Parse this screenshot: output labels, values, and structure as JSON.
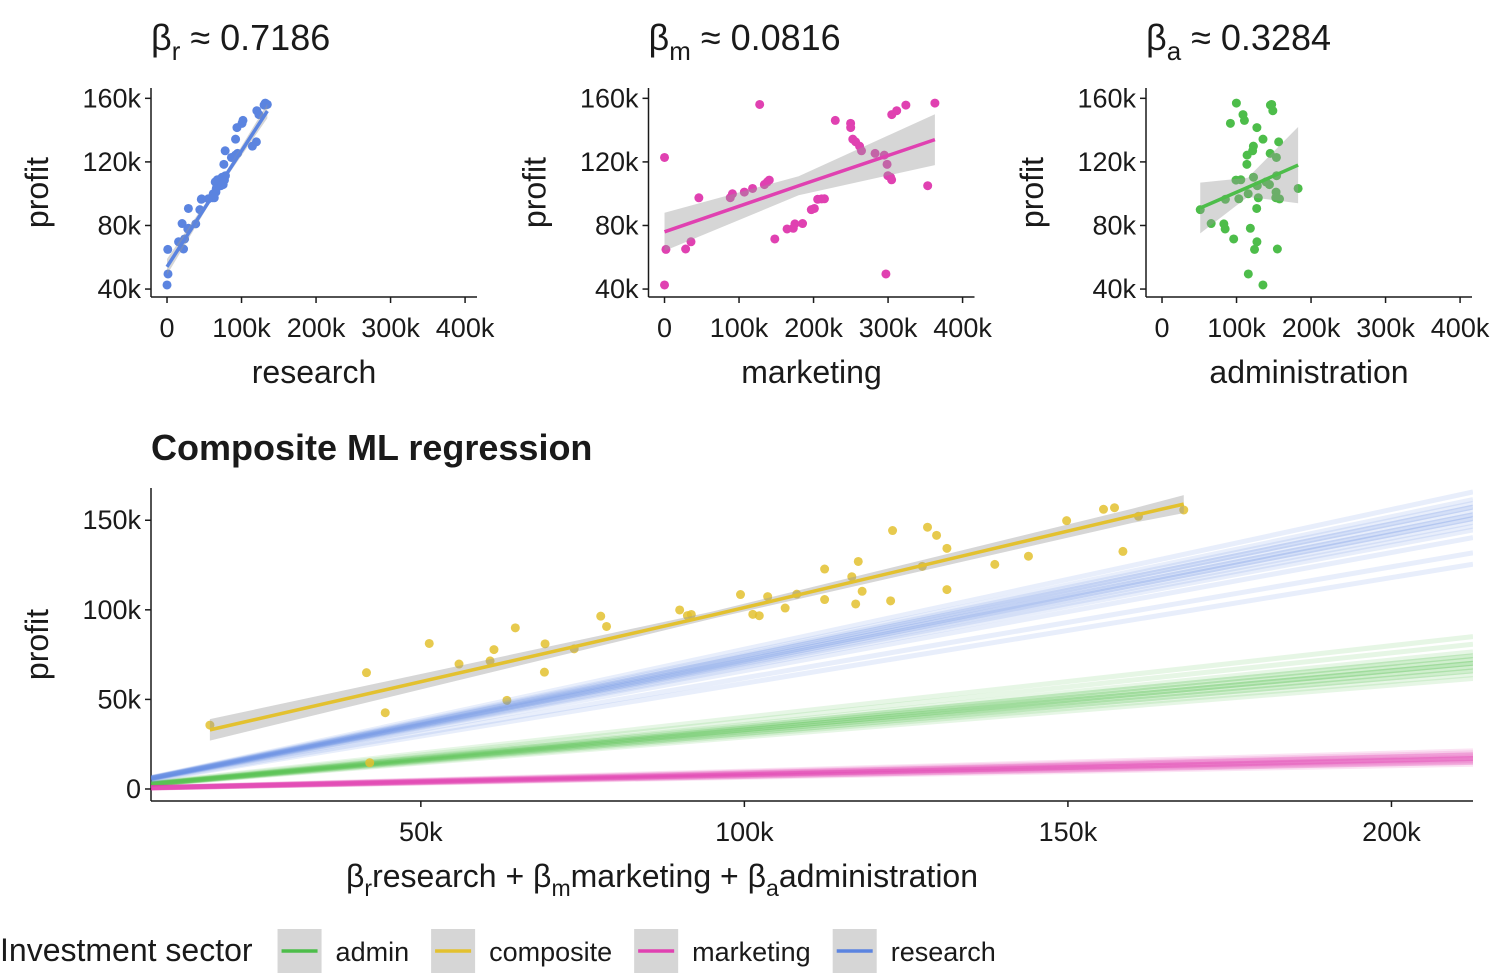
{
  "chart_data": [
    {
      "type": "scatter",
      "title": [
        {
          "text": "β"
        },
        {
          "sub": "r"
        },
        {
          "text": " ≈ 0.7186"
        }
      ],
      "xlabel": "research",
      "ylabel": "profit",
      "xlim": [
        -21500,
        416000
      ],
      "ylim": [
        35000,
        166500
      ],
      "xticks": [
        0,
        {
          "value": 100000,
          "label": "100k"
        },
        {
          "value": 200000,
          "label": "200k"
        },
        {
          "value": 300000,
          "label": "300k"
        },
        {
          "value": 400000,
          "label": "400k"
        }
      ],
      "yticks": [
        {
          "value": 40000,
          "label": "40k"
        },
        {
          "value": 80000,
          "label": "80k"
        },
        {
          "value": 120000,
          "label": "120k"
        },
        {
          "value": 160000,
          "label": "160k"
        }
      ],
      "series": [
        {
          "color": "#5b84e0",
          "x": [
            131877,
            134615,
            130298,
            120543,
            123335,
            101913,
            100672,
            93864,
            91992,
            119943,
            114524,
            78013,
            94657,
            91749,
            86420,
            76254,
            78389,
            73995,
            67533,
            77044,
            64665,
            75329,
            72108,
            66052,
            65605,
            61994,
            61136,
            63409,
            55494,
            46426,
            46014,
            28664,
            44070,
            20230,
            38559,
            28754,
            27893,
            23641,
            15506,
            22178,
            1000,
            1315,
            0
          ],
          "y": [
            156991,
            156123,
            155753,
            152212,
            149760,
            146122,
            144259,
            141586,
            134307,
            132603,
            129917,
            126993,
            125370,
            124267,
            122777,
            118474,
            111313,
            110352,
            108734,
            108552,
            107404,
            105734,
            105008,
            103282,
            101005,
            99938,
            97484,
            97428,
            96779,
            96713,
            96480,
            90708,
            89949,
            81229,
            81006,
            78240,
            77799,
            71498,
            69759,
            65200,
            64926,
            49491,
            42560
          ]
        }
      ],
      "fit": {
        "x": [
          0,
          67000,
          134615
        ],
        "y": [
          54000,
          103000,
          152000
        ],
        "lower": [
          49000,
          101500,
          147500
        ],
        "upper": [
          59000,
          104500,
          156500
        ]
      }
    },
    {
      "type": "scatter",
      "title": [
        {
          "text": "β"
        },
        {
          "sub": "m"
        },
        {
          "text": " ≈ 0.0816"
        }
      ],
      "xlabel": "marketing",
      "ylabel": "profit",
      "xlim": [
        -21500,
        416000
      ],
      "ylim": [
        35000,
        166500
      ],
      "xticks": [
        0,
        {
          "value": 100000,
          "label": "100k"
        },
        {
          "value": 200000,
          "label": "200k"
        },
        {
          "value": 300000,
          "label": "300k"
        },
        {
          "value": 400000,
          "label": "400k"
        }
      ],
      "yticks": [
        {
          "value": 40000,
          "label": "40k"
        },
        {
          "value": 80000,
          "label": "80k"
        },
        {
          "value": 120000,
          "label": "120k"
        },
        {
          "value": 160000,
          "label": "160k"
        }
      ],
      "series": [
        {
          "color": "#e041b1",
          "x": [
            362861,
            127717,
            323877,
            311613,
            304982,
            229161,
            249745,
            249839,
            252665,
            256513,
            261776,
            264346,
            282574,
            294920,
            0,
            298664,
            299737,
            303319,
            304769,
            140575,
            137963,
            134050,
            353184,
            118148,
            107138,
            91131,
            88218,
            46085,
            214635,
            210798,
            205518,
            201127,
            197029,
            185265,
            174999,
            172796,
            164471,
            148001,
            35534,
            28335,
            1904,
            297114,
            0
          ],
          "y": [
            156991,
            156123,
            155753,
            152212,
            149760,
            146122,
            144259,
            141586,
            134307,
            132603,
            129917,
            126993,
            125370,
            124267,
            122777,
            118474,
            111313,
            110352,
            108734,
            108552,
            107404,
            105734,
            105008,
            103282,
            101005,
            99938,
            97484,
            97428,
            96779,
            96713,
            96480,
            90708,
            89949,
            81229,
            81006,
            78240,
            77799,
            71498,
            69759,
            65200,
            64926,
            49491,
            42560
          ]
        }
      ],
      "fit": {
        "x": [
          0,
          180000,
          362861
        ],
        "y": [
          76000,
          105000,
          134000
        ],
        "lower": [
          64000,
          99000,
          118000
        ],
        "upper": [
          88000,
          111000,
          150000
        ]
      }
    },
    {
      "type": "scatter",
      "title": [
        {
          "text": "β"
        },
        {
          "sub": "a"
        },
        {
          "text": " ≈ 0.3284"
        }
      ],
      "xlabel": "administration",
      "ylabel": "profit",
      "xlim": [
        -21500,
        416000
      ],
      "ylim": [
        35000,
        166500
      ],
      "xticks": [
        0,
        {
          "value": 100000,
          "label": "100k"
        },
        {
          "value": 200000,
          "label": "200k"
        },
        {
          "value": 300000,
          "label": "300k"
        },
        {
          "value": 400000,
          "label": "400k"
        }
      ],
      "yticks": [
        {
          "value": 40000,
          "label": "40k"
        },
        {
          "value": 80000,
          "label": "80k"
        },
        {
          "value": 120000,
          "label": "120k"
        },
        {
          "value": 160000,
          "label": "160k"
        }
      ],
      "series": [
        {
          "color": "#4dbd4a",
          "x": [
            99815,
            147199,
            145530,
            148719,
            108679,
            110594,
            91791,
            127320,
            135495,
            156547,
            122617,
            121598,
            145078,
            114176,
            153514,
            113867,
            153773,
            122783,
            105751,
            99281,
            139553,
            144136,
            127865,
            182646,
            153032,
            115641,
            152702,
            129220,
            103057,
            157694,
            85047,
            127056,
            51283,
            65948,
            82982,
            118546,
            84711,
            96190,
            127382,
            154806,
            124153,
            115816,
            135427
          ],
          "y": [
            156991,
            156123,
            155753,
            152212,
            149760,
            146122,
            144259,
            141586,
            134307,
            132603,
            129917,
            126993,
            125370,
            124267,
            122777,
            118474,
            111313,
            110352,
            108734,
            108552,
            107404,
            105734,
            105008,
            103282,
            101005,
            99938,
            97484,
            97428,
            96779,
            96713,
            96480,
            90708,
            89949,
            81229,
            81006,
            78240,
            77799,
            71498,
            69759,
            65200,
            64926,
            49491,
            42560
          ]
        }
      ],
      "fit": {
        "x": [
          51283,
          115000,
          182646
        ],
        "y": [
          91000,
          104000,
          118000
        ],
        "lower": [
          75000,
          98000,
          94000
        ],
        "upper": [
          107000,
          110000,
          142000
        ]
      }
    },
    {
      "type": "scatter",
      "title": [
        {
          "text": "Composite ML regression"
        }
      ],
      "xlabel": [
        {
          "text": "β"
        },
        {
          "sub": "r"
        },
        {
          "text": "research + "
        },
        {
          "text": "β"
        },
        {
          "sub": "m"
        },
        {
          "text": "marketing + "
        },
        {
          "text": "β"
        },
        {
          "sub": "a"
        },
        {
          "text": "administration"
        }
      ],
      "ylabel": "profit",
      "xlim": [
        8300,
        212600
      ],
      "ylim": [
        -6700,
        168000
      ],
      "xticks": [
        {
          "value": 50000,
          "label": "50k"
        },
        {
          "value": 100000,
          "label": "100k"
        },
        {
          "value": 150000,
          "label": "150k"
        },
        {
          "value": 200000,
          "label": "200k"
        }
      ],
      "yticks": [
        0,
        {
          "value": 50000,
          "label": "50k"
        },
        {
          "value": 100000,
          "label": "100k"
        },
        {
          "value": 150000,
          "label": "150k"
        }
      ],
      "legend": "bottom",
      "legend_title": "Investment sector",
      "series": [
        {
          "name": "admin",
          "color": "#4dbd4a",
          "slopes": [
            0.33,
            0.31,
            0.35,
            0.34,
            0.3,
            0.36,
            0.32,
            0.33,
            0.38,
            0.29,
            0.34,
            0.33,
            0.35,
            0.31,
            0.4,
            0.32
          ]
        },
        {
          "name": "composite",
          "color": "#e3c12f",
          "x": [
            157200,
            155500,
            167900,
            160900,
            149800,
            128300,
            122900,
            129700,
            131300,
            158500,
            143900,
            117600,
            138700,
            127500,
            112400,
            116600,
            131300,
            118200,
            108100,
            99400,
            103600,
            112400,
            122600,
            117200,
            106300,
            90000,
            101300,
            91800,
            91200,
            102300,
            77800,
            78700,
            64600,
            51300,
            69200,
            73700,
            61300,
            60700,
            55900,
            69100,
            41600,
            63300,
            44500,
            17400,
            42100
          ],
          "y": [
            156991,
            156123,
            155753,
            152212,
            149760,
            146122,
            144259,
            141586,
            134307,
            132603,
            129917,
            126993,
            125370,
            124267,
            122777,
            118474,
            111313,
            110352,
            108734,
            108552,
            107404,
            105734,
            105008,
            103282,
            101005,
            99938,
            97484,
            97428,
            96779,
            96713,
            96480,
            90708,
            89949,
            81229,
            81006,
            78240,
            77799,
            71498,
            69759,
            65200,
            64926,
            49491,
            42560,
            35673,
            14681
          ],
          "fit": {
            "x": [
              17400,
              95000,
              160000,
              167900
            ],
            "y": [
              33000,
              97000,
              152500,
              159000
            ],
            "lower": [
              27000,
              95000,
              148500,
              154000
            ],
            "upper": [
              39000,
              99000,
              156500,
              164000
            ]
          }
        },
        {
          "name": "marketing",
          "color": "#e041b1",
          "slopes": [
            0.08,
            0.07,
            0.09,
            0.085,
            0.075,
            0.08,
            0.095,
            0.07,
            0.082,
            0.065,
            0.09,
            0.078,
            0.088,
            0.072,
            0.08,
            0.1
          ]
        },
        {
          "name": "research",
          "color": "#5b84e0",
          "slopes": [
            0.72,
            0.7,
            0.74,
            0.68,
            0.76,
            0.71,
            0.73,
            0.66,
            0.78,
            0.69,
            0.75,
            0.72,
            0.62,
            0.71,
            0.74,
            0.59
          ]
        }
      ]
    }
  ]
}
